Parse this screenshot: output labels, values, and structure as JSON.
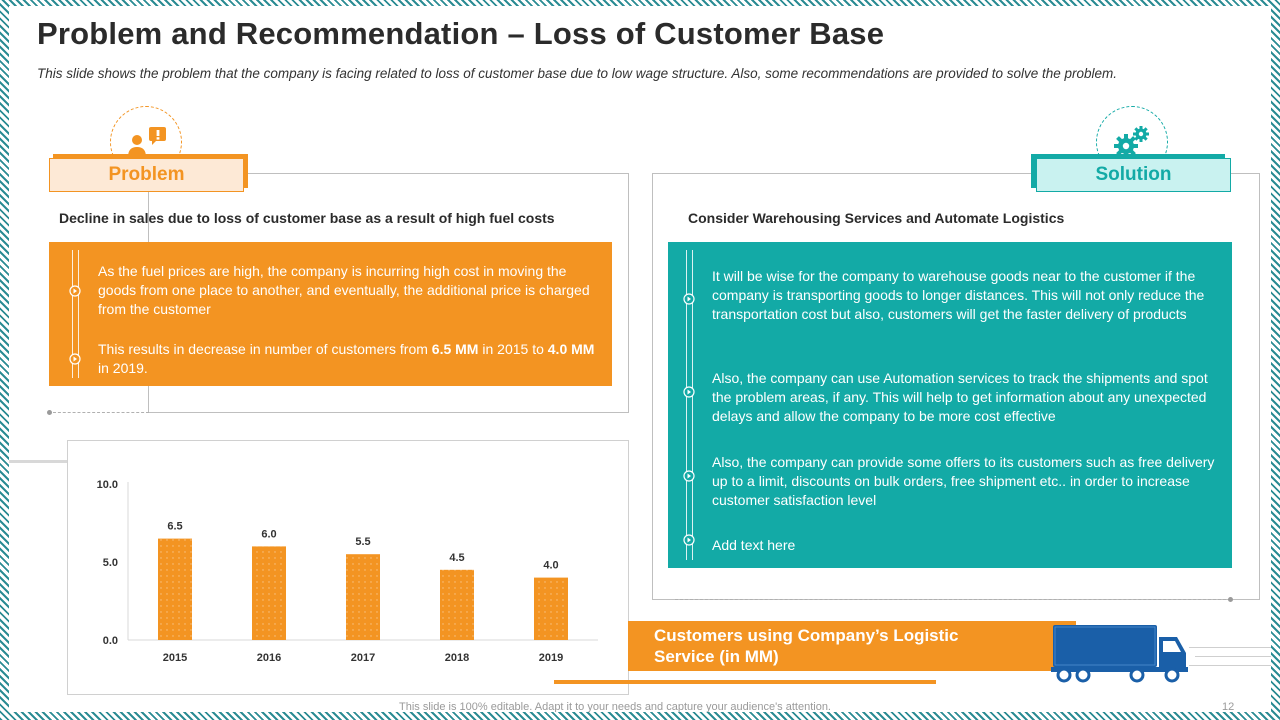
{
  "title": "Problem and Recommendation – Loss of Customer Base",
  "subtitle": "This slide shows the problem that the company is facing related to loss of customer base due to low wage structure.  Also, some recommendations are provided to solve the problem.",
  "colors": {
    "orange": "#f39422",
    "teal": "#13aaa6",
    "problem_tab_bg": "#fde9d6",
    "solution_tab_bg": "#c9f2f0"
  },
  "problem": {
    "icon": "customer-alert-icon",
    "tab_label": "Problem",
    "heading": "Decline in sales  due to loss of customer base as a result of high fuel costs",
    "points": [
      {
        "text": "As the fuel prices are high, the company is incurring high cost in moving the goods from one place to another, and eventually, the additional price is charged from  the customer"
      },
      {
        "before": "This results in decrease in number  of customers from ",
        "strong1": "6.5 MM",
        "middle": " in 2015 to ",
        "strong2": "4.0 MM",
        "after": " in 2019."
      }
    ]
  },
  "solution": {
    "icon": "gears-icon",
    "tab_label": "Solution",
    "heading": "Consider Warehousing Services and Automate Logistics",
    "points": [
      "It will be wise for the company to warehouse goods near to the customer if the company is transporting goods to longer distances. This will not only reduce the transportation cost but also, customers will get the faster delivery of products",
      "Also, the company can use Automation  services to track the shipments and spot the problem  areas, if any. This will help to get information about any unexpected delays and allow the company to be more  cost effective",
      "Also, the company can provide some offers to its customers such as free delivery up to a limit, discounts on bulk orders, free shipment etc.. in order to increase customer satisfaction level",
      "Add text here"
    ]
  },
  "chart_data": {
    "type": "bar",
    "title": "Customers using Company’s Logistic Service (in MM)",
    "categories": [
      "2015",
      "2016",
      "2017",
      "2018",
      "2019"
    ],
    "values": [
      6.5,
      6.0,
      5.5,
      4.5,
      4.0
    ],
    "value_labels": [
      "6.5",
      "6.0",
      "5.5",
      "4.5",
      "4.0"
    ],
    "y_ticks": [
      0,
      5,
      10
    ],
    "y_tick_labels": [
      "0.0",
      "5.0",
      "10.0"
    ],
    "ylim": [
      0,
      10
    ],
    "xlabel": "",
    "ylabel": "",
    "bar_color": "#f39422"
  },
  "banner": {
    "line1": "Customers using Company’s Logistic",
    "line2": "Service (in MM)",
    "icon": "truck-icon"
  },
  "footer": "This slide is 100% editable. Adapt it to your needs and capture your audience's attention.",
  "page_number": "12"
}
